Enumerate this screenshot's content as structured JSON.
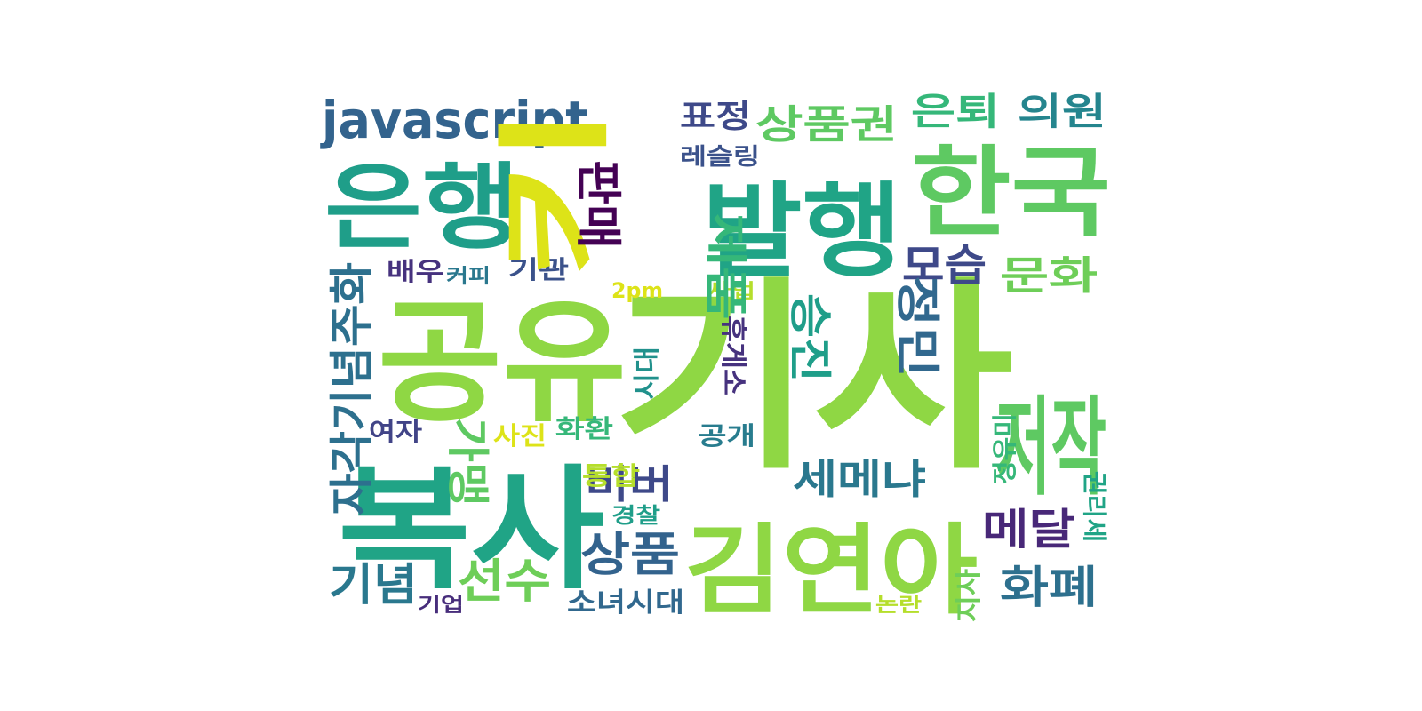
{
  "word_cloud": {
    "words": [
      {
        "text": "기사",
        "color": "#8fd744"
      },
      {
        "text": "공유",
        "color": "#8fd744"
      },
      {
        "text": "복사",
        "color": "#20a486"
      },
      {
        "text": "키",
        "color": "#dde318"
      },
      {
        "text": "발행",
        "color": "#20a486"
      },
      {
        "text": "한국",
        "color": "#5ec962"
      },
      {
        "text": "은행",
        "color": "#1f9e89"
      },
      {
        "text": "김연아",
        "color": "#8fd744"
      },
      {
        "text": "저작",
        "color": "#5ec962"
      },
      {
        "text": "javascript",
        "color": "#33638d"
      },
      {
        "text": "상품권",
        "color": "#5ec962"
      },
      {
        "text": "은퇴",
        "color": "#35b779"
      },
      {
        "text": "의원",
        "color": "#25858e"
      },
      {
        "text": "표정",
        "color": "#3e4989"
      },
      {
        "text": "레슬링",
        "color": "#3b528b"
      },
      {
        "text": "판매",
        "color": "#440154"
      },
      {
        "text": "모습",
        "color": "#3e4989"
      },
      {
        "text": "문화",
        "color": "#6ece58"
      },
      {
        "text": "정민",
        "color": "#31688e"
      },
      {
        "text": "승진",
        "color": "#1f9e89"
      },
      {
        "text": "제품",
        "color": "#35b779"
      },
      {
        "text": "자각기념주화",
        "color": "#2d708e"
      },
      {
        "text": "배우",
        "color": "#46327e"
      },
      {
        "text": "커피",
        "color": "#2a788e"
      },
      {
        "text": "기관",
        "color": "#3b528b"
      },
      {
        "text": "2pm",
        "color": "#dde318"
      },
      {
        "text": "사업",
        "color": "#b5de2b"
      },
      {
        "text": "휴게소",
        "color": "#46327e"
      },
      {
        "text": "시대",
        "color": "#21918c"
      },
      {
        "text": "여자",
        "color": "#414487"
      },
      {
        "text": "사진",
        "color": "#dde318"
      },
      {
        "text": "화환",
        "color": "#35b779"
      },
      {
        "text": "공개",
        "color": "#287c8e"
      },
      {
        "text": "가맹",
        "color": "#5ec962"
      },
      {
        "text": "비버",
        "color": "#3e4989"
      },
      {
        "text": "세메냐",
        "color": "#2a788e"
      },
      {
        "text": "정유미",
        "color": "#35b779"
      },
      {
        "text": "메달",
        "color": "#482878"
      },
      {
        "text": "통합",
        "color": "#b5de2b"
      },
      {
        "text": "경찰",
        "color": "#1f9e89"
      },
      {
        "text": "권리세",
        "color": "#20a486"
      },
      {
        "text": "상품",
        "color": "#33638d"
      },
      {
        "text": "선수",
        "color": "#6ece58"
      },
      {
        "text": "기념",
        "color": "#2a788e"
      },
      {
        "text": "기업",
        "color": "#472d7b"
      },
      {
        "text": "소녀시대",
        "color": "#31688e"
      },
      {
        "text": "논란",
        "color": "#b5de2b"
      },
      {
        "text": "지사",
        "color": "#6ece58"
      },
      {
        "text": "화폐",
        "color": "#2d708e"
      }
    ]
  }
}
